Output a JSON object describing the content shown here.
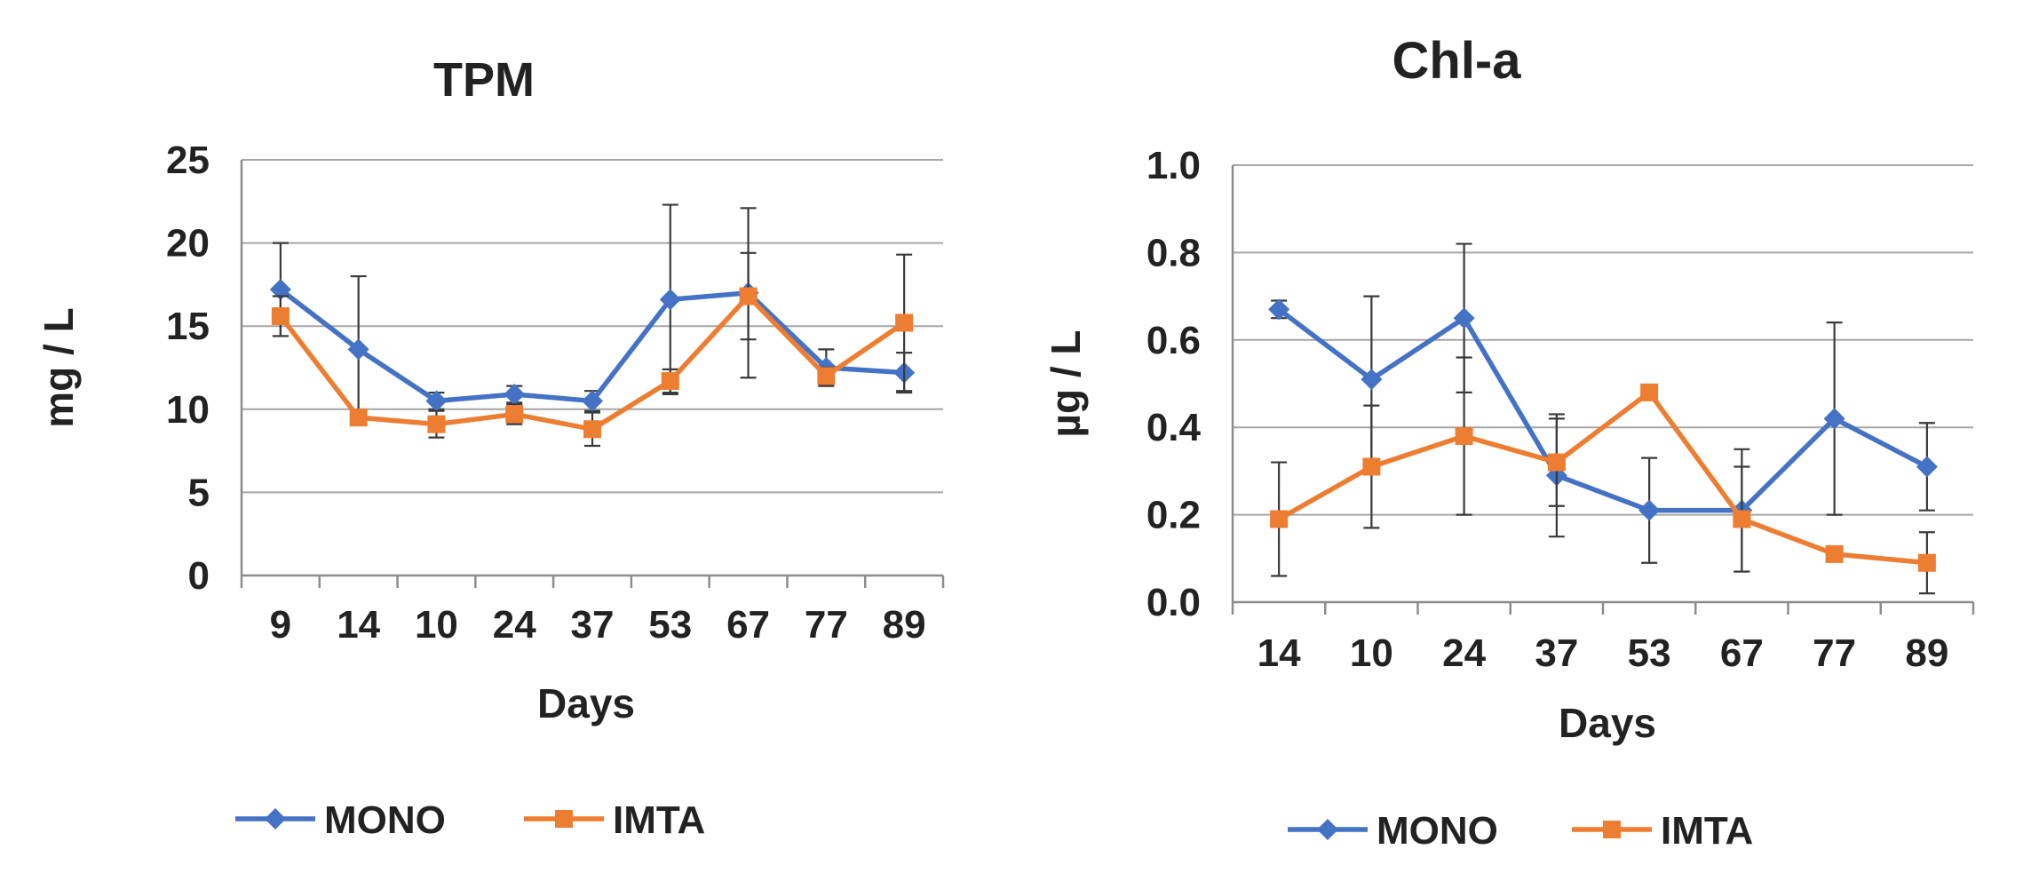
{
  "chart_data": [
    {
      "type": "line",
      "title": "TPM",
      "xlabel": "Days",
      "ylabel": "mg / L",
      "categories": [
        "9",
        "14",
        "10",
        "24",
        "37",
        "53",
        "67",
        "77",
        "89"
      ],
      "ylim": [
        0,
        25
      ],
      "yticks": [
        "0",
        "5",
        "10",
        "15",
        "20",
        "25"
      ],
      "grid": true,
      "legend": "bottom",
      "series": [
        {
          "name": "MONO",
          "color": "#4472c4",
          "marker": "diamond",
          "values": [
            17.2,
            13.6,
            10.5,
            10.9,
            10.5,
            16.6,
            17.0,
            12.5,
            12.2
          ],
          "error": [
            2.8,
            4.4,
            0.5,
            0.5,
            0.6,
            5.7,
            5.1,
            1.1,
            1.2
          ]
        },
        {
          "name": "IMTA",
          "color": "#ed7d31",
          "marker": "square",
          "values": [
            15.6,
            9.5,
            9.1,
            9.7,
            8.8,
            11.7,
            16.8,
            12.0,
            15.2
          ],
          "error": [
            1.2,
            0.3,
            0.8,
            0.6,
            1.0,
            0.7,
            2.6,
            0.5,
            4.1
          ]
        }
      ]
    },
    {
      "type": "line",
      "title": "Chl-a",
      "xlabel": "Days",
      "ylabel": "µg / L",
      "categories": [
        "14",
        "10",
        "24",
        "37",
        "53",
        "67",
        "77",
        "89"
      ],
      "ylim": [
        0,
        1.0
      ],
      "yticks": [
        "0.0",
        "0.2",
        "0.4",
        "0.6",
        "0.8",
        "1.0"
      ],
      "grid": true,
      "legend": "bottom",
      "series": [
        {
          "name": "MONO",
          "color": "#4472c4",
          "marker": "diamond",
          "values": [
            0.67,
            0.51,
            0.65,
            0.29,
            0.21,
            0.21,
            0.42,
            0.31
          ],
          "error": [
            0.02,
            0.19,
            0.17,
            0.14,
            0.12,
            0.14,
            0.22,
            0.1
          ]
        },
        {
          "name": "IMTA",
          "color": "#ed7d31",
          "marker": "square",
          "values": [
            0.19,
            0.31,
            0.38,
            0.32,
            0.48,
            0.19,
            0.11,
            0.09
          ],
          "error": [
            0.13,
            0.14,
            0.18,
            0.1,
            0.01,
            0.12,
            0.01,
            0.07
          ]
        }
      ]
    }
  ]
}
